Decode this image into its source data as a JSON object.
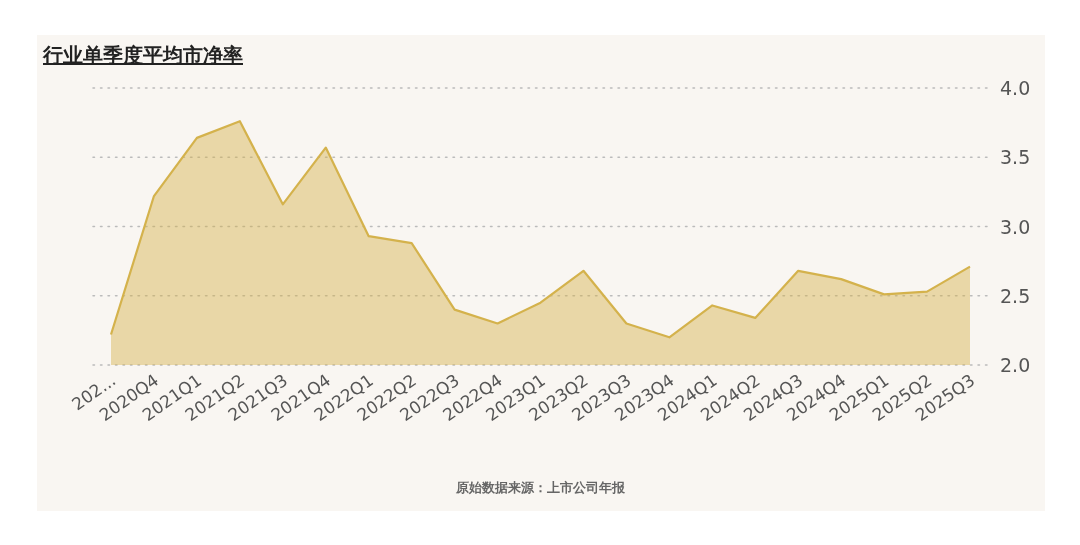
{
  "chart_data": {
    "type": "area",
    "title": "行业单季度平均市净率",
    "annotations": [
      "原始数据来源：上市公司年报"
    ],
    "categories": [
      "202...",
      "2020Q4",
      "2021Q1",
      "2021Q2",
      "2021Q3",
      "2021Q4",
      "2022Q1",
      "2022Q2",
      "2022Q3",
      "2022Q4",
      "2023Q1",
      "2023Q2",
      "2023Q3",
      "2023Q4",
      "2024Q1",
      "2024Q2",
      "2024Q3",
      "2024Q4",
      "2025Q1",
      "2025Q2",
      "2025Q3"
    ],
    "values": [
      2.22,
      3.22,
      3.64,
      3.76,
      3.16,
      3.57,
      2.93,
      2.88,
      2.4,
      2.3,
      2.45,
      2.68,
      2.3,
      2.2,
      2.43,
      2.34,
      2.68,
      2.62,
      2.51,
      2.53,
      2.71
    ],
    "color": "#d4b24c",
    "ylim": [
      2.0,
      4.0
    ],
    "yticks": [
      {
        "value": 2.0,
        "label": "2.0"
      },
      {
        "value": 2.5,
        "label": "2.5"
      },
      {
        "value": 3.0,
        "label": "3.0"
      },
      {
        "value": 3.5,
        "label": "3.5"
      },
      {
        "value": 4.0,
        "label": "4.0"
      }
    ],
    "grid": "y"
  }
}
